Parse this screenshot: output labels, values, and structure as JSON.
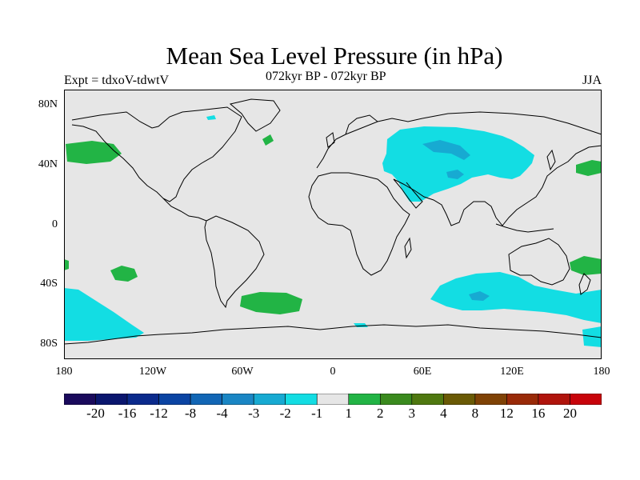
{
  "title": "Mean Sea Level Pressure (in hPa)",
  "subtitle_left": "Expt = tdxoV-tdwtV",
  "subtitle_center": "072kyr BP - 072kyr BP",
  "subtitle_right": "JJA",
  "lat_labels": [
    "80N",
    "40N",
    "0",
    "40S",
    "80S"
  ],
  "lon_labels": [
    "180",
    "120W",
    "60W",
    "0",
    "60E",
    "120E",
    "180"
  ],
  "colorbar": {
    "labels": [
      "-20",
      "-16",
      "-12",
      "-8",
      "-4",
      "-3",
      "-2",
      "-1",
      "1",
      "2",
      "3",
      "4",
      "8",
      "12",
      "16",
      "20"
    ],
    "colors": [
      "#1a0a5c",
      "#0a166e",
      "#0b2a8c",
      "#0b44a3",
      "#1266b5",
      "#1a86c4",
      "#17aad2",
      "#13dde3",
      "#e6e6e6",
      "#22b445",
      "#3a8a1e",
      "#4f7810",
      "#6a5a05",
      "#7f4205",
      "#992a08",
      "#b0140c",
      "#c8040b"
    ]
  },
  "colors": {
    "background": "#e6e6e6",
    "cyan": "#13dde3",
    "blue": "#17aad2",
    "green": "#22b445"
  }
}
